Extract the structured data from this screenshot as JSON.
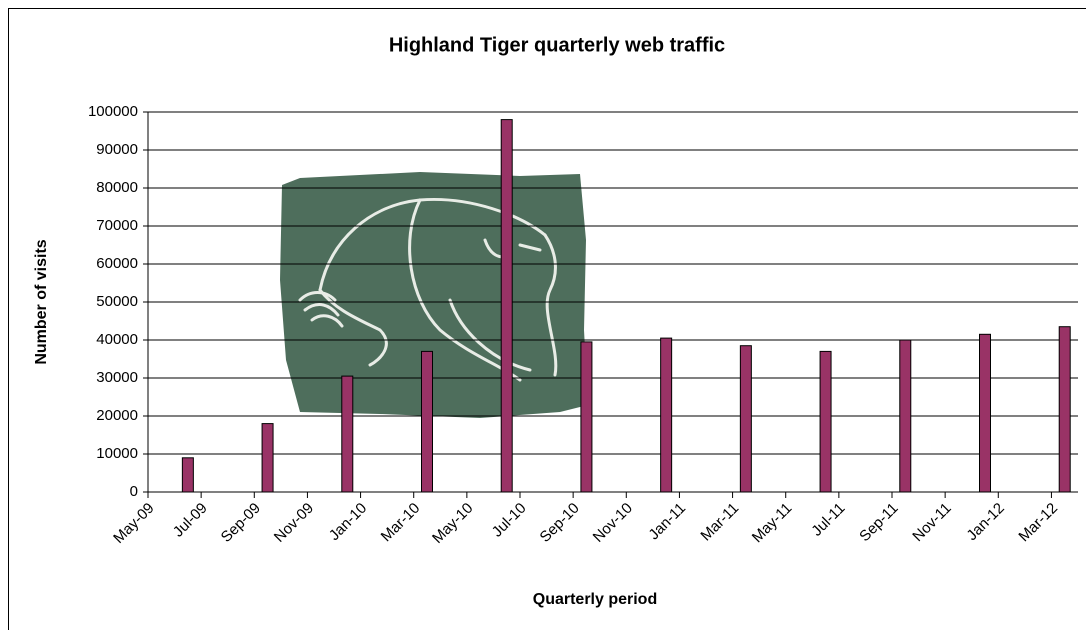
{
  "chart_data": {
    "type": "bar",
    "title": "Highland Tiger quarterly web traffic",
    "x_label": "Quarterly period",
    "y_label": "Number of visits",
    "x": [
      "2009-06",
      "2009-09",
      "2009-12",
      "2010-03",
      "2010-06",
      "2010-09",
      "2010-12",
      "2011-03",
      "2011-06",
      "2011-09",
      "2011-12",
      "2012-03"
    ],
    "values": [
      9000,
      18000,
      30500,
      37000,
      98000,
      39500,
      40500,
      38500,
      37000,
      40000,
      41500,
      43500
    ],
    "color": "#993366",
    "xlim": [
      "2009-05",
      "2012-04"
    ],
    "xticks": [
      {
        "value": "2009-05",
        "label": "May-09"
      },
      {
        "value": "2009-07",
        "label": "Jul-09"
      },
      {
        "value": "2009-09",
        "label": "Sep-09"
      },
      {
        "value": "2009-11",
        "label": "Nov-09"
      },
      {
        "value": "2010-01",
        "label": "Jan-10"
      },
      {
        "value": "2010-03",
        "label": "Mar-10"
      },
      {
        "value": "2010-05",
        "label": "May-10"
      },
      {
        "value": "2010-07",
        "label": "Jul-10"
      },
      {
        "value": "2010-09",
        "label": "Sep-10"
      },
      {
        "value": "2010-11",
        "label": "Nov-10"
      },
      {
        "value": "2011-01",
        "label": "Jan-11"
      },
      {
        "value": "2011-03",
        "label": "Mar-11"
      },
      {
        "value": "2011-05",
        "label": "May-11"
      },
      {
        "value": "2011-07",
        "label": "Jul-11"
      },
      {
        "value": "2011-09",
        "label": "Sep-11"
      },
      {
        "value": "2011-11",
        "label": "Nov-11"
      },
      {
        "value": "2012-01",
        "label": "Jan-12"
      },
      {
        "value": "2012-03",
        "label": "Mar-12"
      }
    ],
    "ylim": [
      0,
      100000
    ],
    "yticks": [
      0,
      10000,
      20000,
      30000,
      40000,
      50000,
      60000,
      70000,
      80000,
      90000,
      100000
    ],
    "grid": true
  }
}
